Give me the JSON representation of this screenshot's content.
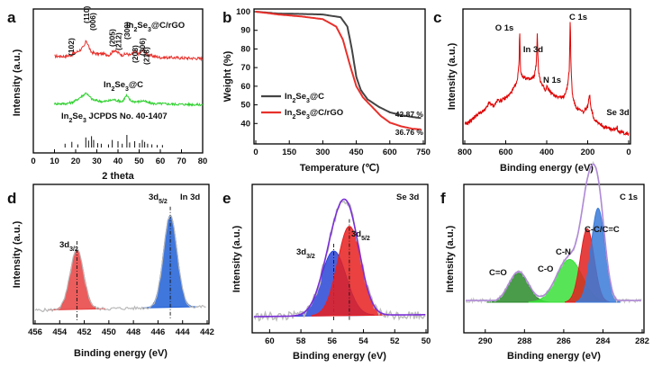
{
  "chart_data": [
    {
      "panel": "a",
      "type": "line",
      "xlabel": "2 theta",
      "ylabel": "Intensity (a.u.)",
      "xlim": [
        0,
        80
      ],
      "xticks": [
        "0",
        "10",
        "20",
        "30",
        "40",
        "50",
        "60",
        "70",
        "80"
      ],
      "series": [
        {
          "name": "In2Se3@C/rGO",
          "label_main": "In",
          "label_sub1": "2",
          "label_mid": "Se",
          "label_sub2": "3",
          "label_tail": "@C/rGO",
          "color": "#e8302b",
          "x": [
            10,
            15,
            18,
            20,
            22,
            24,
            25,
            26,
            27,
            28,
            30,
            33,
            36,
            38,
            40,
            42,
            44,
            46,
            48,
            50,
            52,
            54,
            57,
            60,
            65,
            70,
            75,
            80
          ],
          "values": [
            0.35,
            0.35,
            0.4,
            0.5,
            0.6,
            0.75,
            1.0,
            0.8,
            0.55,
            0.5,
            0.45,
            0.45,
            0.4,
            0.6,
            0.5,
            0.4,
            0.45,
            0.4,
            0.55,
            0.45,
            0.6,
            0.4,
            0.35,
            0.3,
            0.3,
            0.28,
            0.27,
            0.25
          ]
        },
        {
          "name": "In2Se3@C",
          "label_main": "In",
          "label_sub1": "2",
          "label_mid": "Se",
          "label_sub2": "3",
          "label_tail": "@C",
          "color": "#2fd12f",
          "x": [
            10,
            15,
            18,
            20,
            22,
            24,
            25,
            26,
            27,
            28,
            30,
            33,
            36,
            38,
            40,
            42,
            44,
            46,
            48,
            50,
            52,
            54,
            57,
            60,
            65,
            70,
            75,
            80
          ],
          "values": [
            0.3,
            0.3,
            0.35,
            0.45,
            0.6,
            0.75,
            0.85,
            0.7,
            0.6,
            0.5,
            0.45,
            0.4,
            0.45,
            0.5,
            0.45,
            0.4,
            0.7,
            0.45,
            0.4,
            0.4,
            0.45,
            0.35,
            0.3,
            0.3,
            0.28,
            0.27,
            0.26,
            0.25
          ]
        }
      ],
      "reference": {
        "label_main": "In",
        "label_sub": "2",
        "label_tail": "Se",
        "label_sub2": "3",
        "label_end": " JCPDS No. 40-1407",
        "lines": [
          [
            15.0,
            0.3
          ],
          [
            18.2,
            0.45
          ],
          [
            21.0,
            0.25
          ],
          [
            24.8,
            0.8
          ],
          [
            26.1,
            0.55
          ],
          [
            27.5,
            0.9
          ],
          [
            28.5,
            0.6
          ],
          [
            30.4,
            0.35
          ],
          [
            32.1,
            0.3
          ],
          [
            35.5,
            0.25
          ],
          [
            37.3,
            0.6
          ],
          [
            40.0,
            0.5
          ],
          [
            42.0,
            0.3
          ],
          [
            44.2,
            1.0
          ],
          [
            45.5,
            0.4
          ],
          [
            47.9,
            0.5
          ],
          [
            50.2,
            0.35
          ],
          [
            51.5,
            0.6
          ],
          [
            52.6,
            0.45
          ],
          [
            54.0,
            0.3
          ],
          [
            56.0,
            0.25
          ],
          [
            58.5,
            0.2
          ],
          [
            61.0,
            0.2
          ]
        ]
      },
      "peak_labels": [
        {
          "text": "(102)",
          "x": 17.9
        },
        {
          "text": "(110)",
          "x": 25.0
        },
        {
          "text": "(006)",
          "x": 28.0
        },
        {
          "text": "(205)",
          "x": 37.2
        },
        {
          "text": "(212)",
          "x": 40.2
        },
        {
          "text": "(300)",
          "x": 44.3
        },
        {
          "text": "(208)",
          "x": 48.0
        },
        {
          "text": "(306)",
          "x": 51.4
        },
        {
          "text": "(218)",
          "x": 53.4
        }
      ]
    },
    {
      "panel": "b",
      "type": "line",
      "xlabel": "Temperature (℃)",
      "ylabel": "Weight (%)",
      "xlim": [
        0,
        750
      ],
      "ylim": [
        30,
        100
      ],
      "xticks": [
        0,
        150,
        300,
        450,
        600,
        750
      ],
      "yticks": [
        40,
        50,
        60,
        70,
        80,
        90,
        100
      ],
      "series": [
        {
          "name": "In2Se3@C",
          "legend_main": "In",
          "legend_sub1": "2",
          "legend_mid": "Se",
          "legend_sub2": "3",
          "legend_tail": "@C",
          "color": "#444444",
          "x": [
            0,
            50,
            100,
            200,
            300,
            380,
            410,
            430,
            450,
            470,
            500,
            550,
            600,
            650,
            700,
            740
          ],
          "values": [
            100,
            99.5,
            99,
            98.8,
            98.5,
            97,
            92,
            80,
            65,
            58,
            53,
            49,
            46,
            44.5,
            43.5,
            42.9
          ]
        },
        {
          "name": "In2Se3@C/rGO",
          "legend_main": "In",
          "legend_sub1": "2",
          "legend_mid": "Se",
          "legend_sub2": "3",
          "legend_tail": "@C/rGO",
          "color": "#e8302b",
          "x": [
            0,
            50,
            100,
            200,
            300,
            360,
            390,
            420,
            450,
            480,
            520,
            560,
            600,
            650,
            700,
            740
          ],
          "values": [
            100,
            99.3,
            98.5,
            97.5,
            96,
            92,
            85,
            72,
            60,
            54,
            49,
            44,
            40.5,
            38.5,
            37.2,
            36.8
          ]
        }
      ],
      "end_labels": [
        "42.87 %",
        "36.76 %"
      ]
    },
    {
      "panel": "c",
      "type": "line",
      "xlabel": "Binding energy (eV)",
      "ylabel": "Intensity (a.u.)",
      "xlim": [
        800,
        0
      ],
      "xticks": [
        800,
        600,
        400,
        200,
        0
      ],
      "series": [
        {
          "name": "survey",
          "color": "#e00000",
          "x": [
            800,
            780,
            760,
            740,
            720,
            700,
            680,
            660,
            640,
            620,
            600,
            580,
            560,
            545,
            535,
            532,
            528,
            520,
            500,
            480,
            460,
            450,
            446,
            444,
            440,
            430,
            420,
            405,
            400,
            395,
            380,
            360,
            340,
            320,
            300,
            290,
            285,
            282,
            275,
            260,
            240,
            220,
            200,
            190,
            185,
            170,
            150,
            120,
            100,
            80,
            60,
            56,
            54,
            40,
            20,
            0
          ],
          "values": [
            0.1,
            0.12,
            0.15,
            0.18,
            0.2,
            0.22,
            0.28,
            0.25,
            0.3,
            0.3,
            0.32,
            0.35,
            0.4,
            0.45,
            0.6,
            0.9,
            0.55,
            0.5,
            0.48,
            0.47,
            0.5,
            0.62,
            0.85,
            0.7,
            0.55,
            0.45,
            0.42,
            0.38,
            0.42,
            0.4,
            0.36,
            0.34,
            0.33,
            0.32,
            0.4,
            0.55,
            0.98,
            0.6,
            0.35,
            0.25,
            0.22,
            0.2,
            0.25,
            0.35,
            0.25,
            0.15,
            0.12,
            0.08,
            0.07,
            0.06,
            0.06,
            0.1,
            0.05,
            0.04,
            0.03,
            0.02
          ]
        }
      ],
      "annotations": [
        "O 1s",
        "In 3d",
        "N 1s",
        "C 1s",
        "Se 3d"
      ]
    },
    {
      "panel": "d",
      "type": "area",
      "title_label": "In 3d",
      "xlabel": "Binding energy (eV)",
      "ylabel": "Intensity (a.u.)",
      "xlim": [
        456,
        442
      ],
      "xticks": [
        456,
        454,
        452,
        450,
        448,
        446,
        444,
        442
      ],
      "peaks": [
        {
          "label_main": "3d",
          "label_sub": "3/2",
          "center": 452.6,
          "height": 0.55,
          "width": 0.55,
          "color": "#e84040"
        },
        {
          "label_main": "3d",
          "label_sub": "5/2",
          "center": 445.0,
          "height": 0.85,
          "width": 0.55,
          "color": "#1f5fd6"
        }
      ]
    },
    {
      "panel": "e",
      "type": "area",
      "title_label": "Se 3d",
      "xlabel": "Binding energy (eV)",
      "ylabel": "Intensity (a.u.)",
      "xlim": [
        61,
        50
      ],
      "xticks": [
        60,
        58,
        56,
        54,
        52,
        50
      ],
      "peaks": [
        {
          "label_main": "3d",
          "label_sub": "3/2",
          "center": 55.9,
          "height": 0.45,
          "width": 0.8,
          "color": "#2a45d6"
        },
        {
          "label_main": "3d",
          "label_sub": "5/2",
          "center": 54.9,
          "height": 0.62,
          "width": 0.75,
          "color": "#e82020"
        }
      ],
      "envelope_color": "#7a2fd6"
    },
    {
      "panel": "f",
      "type": "area",
      "title_label": "C 1s",
      "xlabel": "Binding energy (eV)",
      "ylabel": "Intensity (a.u.)",
      "xlim": [
        291,
        282
      ],
      "xticks": [
        290,
        288,
        286,
        284,
        282
      ],
      "peaks": [
        {
          "label": "C=O",
          "center": 288.3,
          "height": 0.17,
          "width": 0.5,
          "color": "#2a8a2a"
        },
        {
          "label": "C-O",
          "center": 285.7,
          "height": 0.25,
          "width": 0.65,
          "color": "#39e039"
        },
        {
          "label": "C-N",
          "center": 284.8,
          "height": 0.43,
          "width": 0.35,
          "color": "#e02020"
        },
        {
          "label": "C-C/C=C",
          "center": 284.25,
          "height": 0.55,
          "width": 0.35,
          "color": "#3a7ad8"
        }
      ],
      "envelope_color": "#b08ad8"
    }
  ]
}
